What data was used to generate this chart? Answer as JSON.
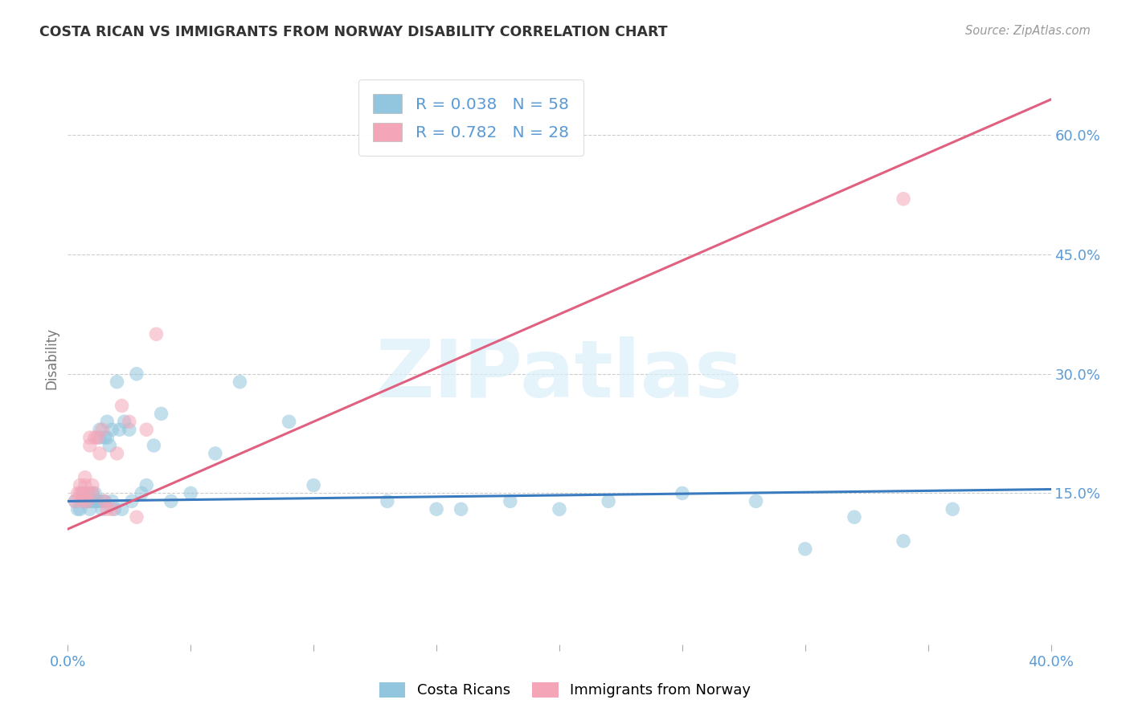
{
  "title": "COSTA RICAN VS IMMIGRANTS FROM NORWAY DISABILITY CORRELATION CHART",
  "source": "Source: ZipAtlas.com",
  "ylabel_label": "Disability",
  "xlim": [
    0.0,
    0.4
  ],
  "ylim": [
    -0.04,
    0.68
  ],
  "yticks_right": [
    0.15,
    0.3,
    0.45,
    0.6
  ],
  "ytick_labels_right": [
    "15.0%",
    "30.0%",
    "45.0%",
    "60.0%"
  ],
  "xtick_positions": [
    0.0,
    0.05,
    0.1,
    0.15,
    0.2,
    0.25,
    0.3,
    0.35,
    0.4
  ],
  "xtick_labels_sparse": {
    "0": "0.0%",
    "8": "40.0%"
  },
  "watermark_text": "ZIPatlas",
  "legend_blue_label": "R = 0.038   N = 58",
  "legend_pink_label": "R = 0.782   N = 28",
  "blue_color": "#92c5de",
  "pink_color": "#f4a6b8",
  "blue_line_color": "#3a7bbf",
  "pink_line_color": "#e06080",
  "axis_label_color": "#5b9bd5",
  "background_color": "#ffffff",
  "grid_color": "#cccccc",
  "blue_scatter_x": [
    0.003,
    0.004,
    0.005,
    0.006,
    0.006,
    0.007,
    0.007,
    0.008,
    0.008,
    0.009,
    0.009,
    0.01,
    0.01,
    0.011,
    0.011,
    0.012,
    0.012,
    0.013,
    0.013,
    0.014,
    0.014,
    0.015,
    0.015,
    0.016,
    0.016,
    0.017,
    0.018,
    0.018,
    0.019,
    0.02,
    0.021,
    0.022,
    0.023,
    0.025,
    0.026,
    0.028,
    0.03,
    0.032,
    0.035,
    0.038,
    0.042,
    0.05,
    0.06,
    0.07,
    0.09,
    0.1,
    0.13,
    0.15,
    0.2,
    0.22,
    0.25,
    0.28,
    0.32,
    0.34,
    0.36,
    0.3,
    0.18,
    0.16
  ],
  "blue_scatter_y": [
    0.14,
    0.13,
    0.13,
    0.14,
    0.15,
    0.14,
    0.15,
    0.14,
    0.15,
    0.13,
    0.14,
    0.14,
    0.15,
    0.14,
    0.15,
    0.14,
    0.14,
    0.22,
    0.23,
    0.13,
    0.14,
    0.22,
    0.14,
    0.22,
    0.24,
    0.21,
    0.14,
    0.23,
    0.13,
    0.29,
    0.23,
    0.13,
    0.24,
    0.23,
    0.14,
    0.3,
    0.15,
    0.16,
    0.21,
    0.25,
    0.14,
    0.15,
    0.2,
    0.29,
    0.24,
    0.16,
    0.14,
    0.13,
    0.13,
    0.14,
    0.15,
    0.14,
    0.12,
    0.09,
    0.13,
    0.08,
    0.14,
    0.13
  ],
  "pink_scatter_x": [
    0.003,
    0.004,
    0.005,
    0.005,
    0.006,
    0.006,
    0.007,
    0.007,
    0.008,
    0.008,
    0.009,
    0.009,
    0.01,
    0.01,
    0.011,
    0.012,
    0.013,
    0.014,
    0.015,
    0.016,
    0.018,
    0.02,
    0.022,
    0.025,
    0.028,
    0.032,
    0.036,
    0.34
  ],
  "pink_scatter_y": [
    0.14,
    0.15,
    0.15,
    0.16,
    0.14,
    0.15,
    0.16,
    0.17,
    0.14,
    0.15,
    0.21,
    0.22,
    0.15,
    0.16,
    0.22,
    0.22,
    0.2,
    0.23,
    0.14,
    0.13,
    0.13,
    0.2,
    0.26,
    0.24,
    0.12,
    0.23,
    0.35,
    0.52
  ],
  "blue_trend_x": [
    0.0,
    0.4
  ],
  "blue_trend_y": [
    0.14,
    0.155
  ],
  "pink_trend_x": [
    0.0,
    0.4
  ],
  "pink_trend_y": [
    0.105,
    0.645
  ]
}
